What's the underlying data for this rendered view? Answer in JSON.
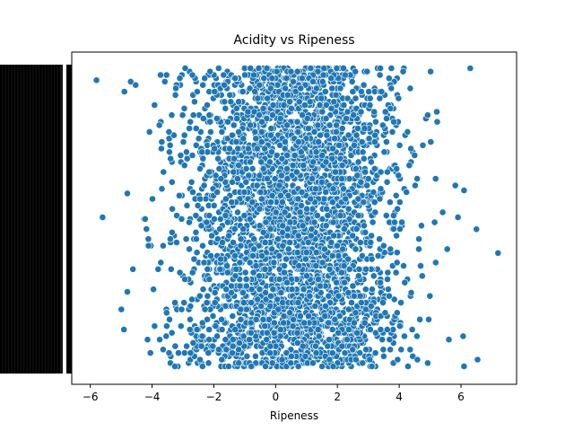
{
  "chart_data": {
    "type": "scatter",
    "title": "Acidity vs Ripeness",
    "xlabel": "Ripeness",
    "ylabel": "",
    "xlim": [
      -6.6,
      7.8
    ],
    "x_ticks": [
      -6,
      -4,
      -2,
      0,
      2,
      4,
      6
    ],
    "x_tick_labels": [
      "−6",
      "−4",
      "−2",
      "0",
      "2",
      "4",
      "6"
    ],
    "y_axis": "categorical, very many overlapping unreadable tick labels",
    "point_count_estimate": 4000,
    "colors": {
      "point": "#1f77b4",
      "point_edge": "#ffffff"
    },
    "grid": false,
    "legend": "none",
    "sample_points": [
      {
        "x": -5.8,
        "y_rank": 0.96
      },
      {
        "x": -5.6,
        "y_rank": 0.5
      },
      {
        "x": -4.8,
        "y_rank": 0.58
      },
      {
        "x": -4.8,
        "y_rank": 0.25
      },
      {
        "x": 6.3,
        "y_rank": 1.0
      },
      {
        "x": 6.5,
        "y_rank": 0.46
      },
      {
        "x": 7.2,
        "y_rank": 0.38
      },
      {
        "x": 6.1,
        "y_rank": 0.0
      },
      {
        "x": 5.9,
        "y_rank": 0.5
      },
      {
        "x": 6.1,
        "y_rank": 0.59
      }
    ]
  }
}
